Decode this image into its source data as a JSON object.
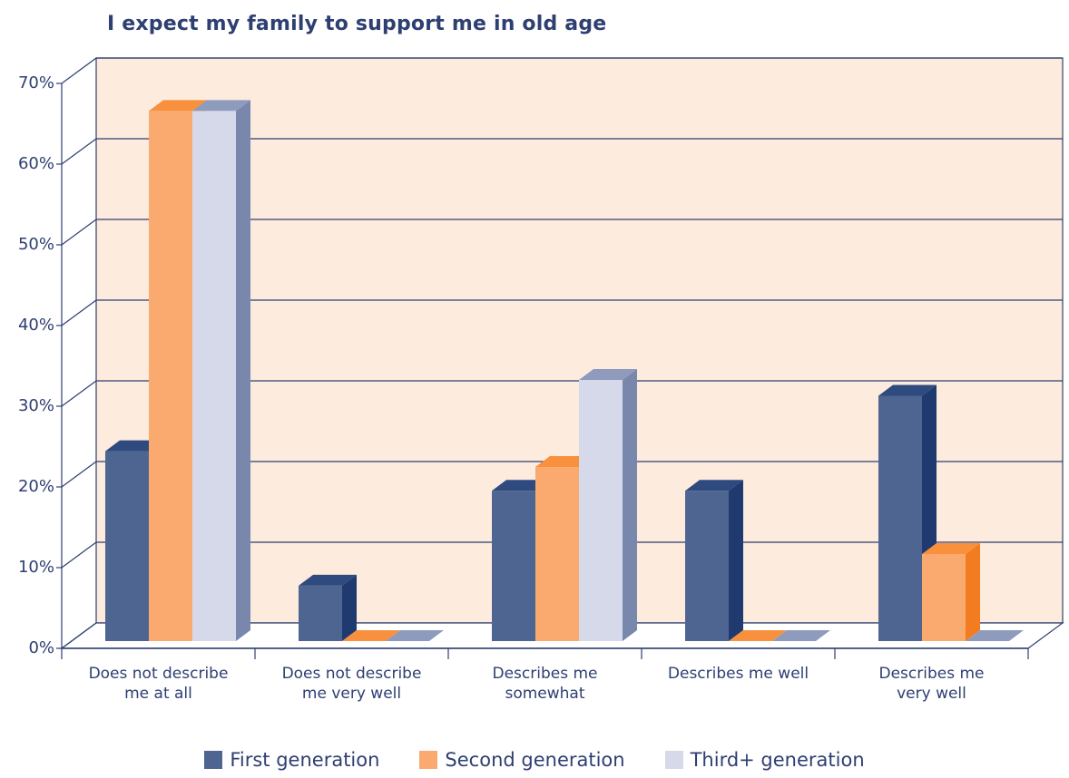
{
  "chart_data": {
    "type": "bar",
    "title": "I expect my family to support me in old age",
    "xlabel": "",
    "ylabel": "",
    "ylim": [
      0,
      70
    ],
    "yticks": [
      "0%",
      "10%",
      "20%",
      "30%",
      "40%",
      "50%",
      "60%",
      "70%"
    ],
    "ytick_values": [
      0,
      10,
      20,
      30,
      40,
      50,
      60,
      70
    ],
    "categories": [
      "Does not describe\nme at all",
      "Does not describe\nme very well",
      "Describes me\nsomewhat",
      "Describes me well",
      "Describes me\nvery well"
    ],
    "series": [
      {
        "name": "First generation",
        "values": [
          24,
          7,
          19,
          19,
          31
        ]
      },
      {
        "name": "Second generation",
        "values": [
          67,
          0,
          22,
          0,
          11
        ]
      },
      {
        "name": "Third+ generation",
        "values": [
          67,
          0,
          33,
          0,
          0
        ]
      }
    ],
    "grid": true,
    "legend_position": "bottom",
    "three_d": true
  },
  "colors": {
    "background_wall": "#fdebdd",
    "axis": "#2e3f72",
    "series": [
      {
        "front": "#4f6591",
        "side": "#1f3a6e",
        "top": "#2e4a7e"
      },
      {
        "front": "#fbaa6f",
        "side": "#f47c20",
        "top": "#f8903e"
      },
      {
        "front": "#d6d9e9",
        "side": "#7887ab",
        "top": "#8e9bbd"
      }
    ]
  }
}
